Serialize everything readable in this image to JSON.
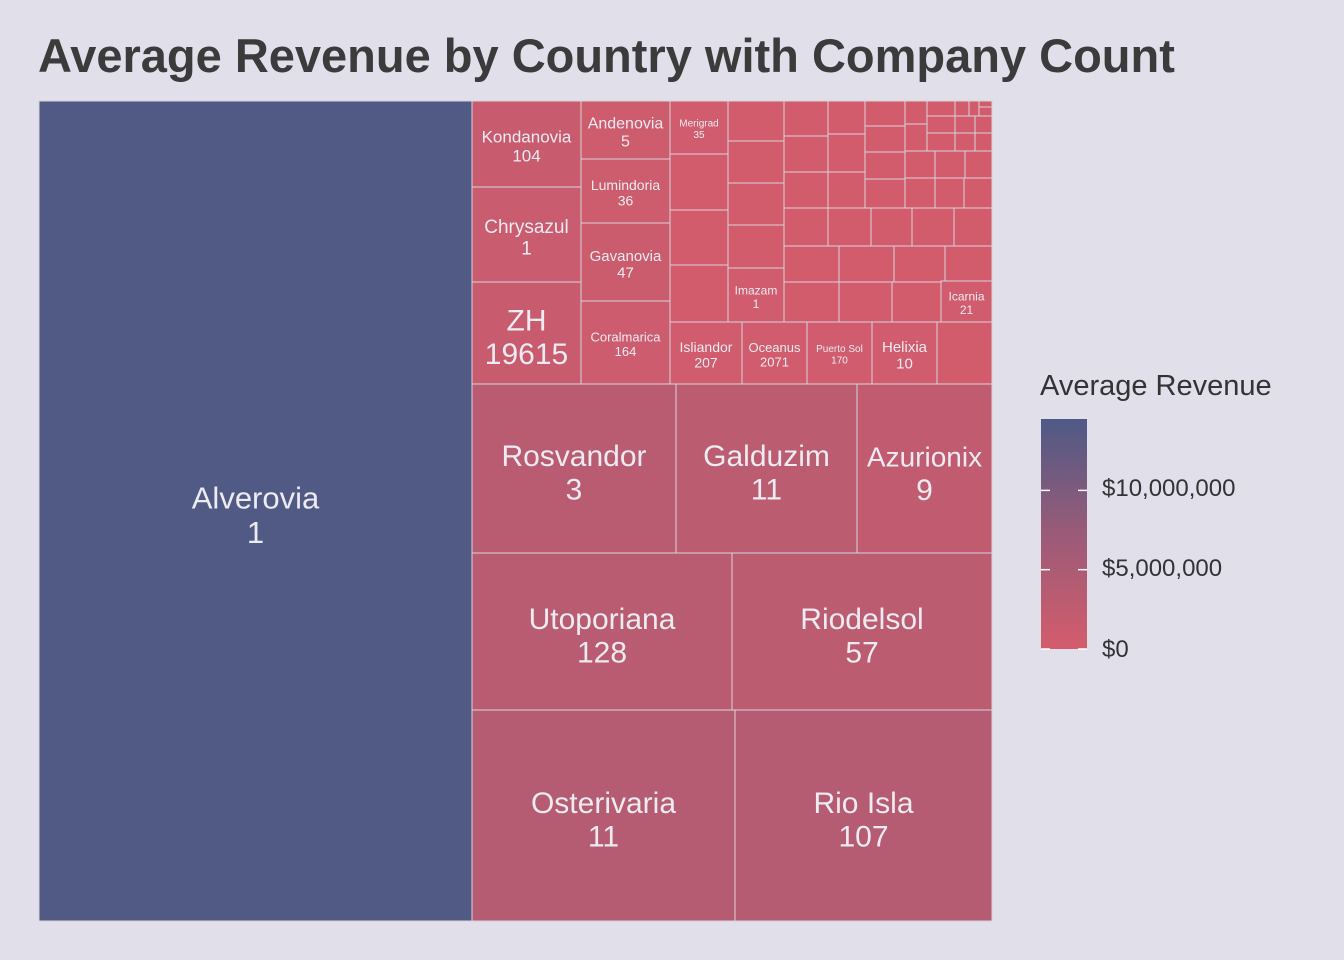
{
  "chart_data": {
    "type": "treemap",
    "title": "Average Revenue by Country with Company Count",
    "color_legend": {
      "title": "Average Revenue",
      "ticks": [
        {
          "value": 10000000,
          "label": "$10,000,000"
        },
        {
          "value": 5000000,
          "label": "$5,000,000"
        },
        {
          "value": 0,
          "label": "$0"
        }
      ],
      "range": [
        0,
        14500000
      ],
      "low_color": "#d45c6c",
      "high_color": "#4e5a86",
      "placement": "right"
    },
    "labeled_tiles": [
      {
        "name": "Alverovia",
        "count": "1",
        "avg_revenue": 14200000
      },
      {
        "name": "Kondanovia",
        "count": "104",
        "avg_revenue": 1300000
      },
      {
        "name": "Chrysazul",
        "count": "1",
        "avg_revenue": 1150000
      },
      {
        "name": "ZH",
        "count": "19615",
        "avg_revenue": 1250000
      },
      {
        "name": "Andenovia",
        "count": "5",
        "avg_revenue": 800000
      },
      {
        "name": "Lumindoria",
        "count": "36",
        "avg_revenue": 750000
      },
      {
        "name": "Gavanovia",
        "count": "47",
        "avg_revenue": 1000000
      },
      {
        "name": "Coralmarica",
        "count": "164",
        "avg_revenue": 900000
      },
      {
        "name": "Merigrad",
        "count": "35",
        "avg_revenue": 400000
      },
      {
        "name": "Imazam",
        "count": "1",
        "avg_revenue": 300000
      },
      {
        "name": "Icarnia",
        "count": "21",
        "avg_revenue": 280000
      },
      {
        "name": "Isliandor",
        "count": "207",
        "avg_revenue": 450000
      },
      {
        "name": "Oceanus",
        "count": "2071",
        "avg_revenue": 420000
      },
      {
        "name": "Puerto Sol",
        "count": "170",
        "avg_revenue": 380000
      },
      {
        "name": "Helixia",
        "count": "10",
        "avg_revenue": 420000
      },
      {
        "name": "Rosvandor",
        "count": "3",
        "avg_revenue": 2800000
      },
      {
        "name": "Galduzim",
        "count": "11",
        "avg_revenue": 2700000
      },
      {
        "name": "Azurionix",
        "count": "9",
        "avg_revenue": 2100000
      },
      {
        "name": "Utoporiana",
        "count": "128",
        "avg_revenue": 2900000
      },
      {
        "name": "Riodelsol",
        "count": "57",
        "avg_revenue": 2700000
      },
      {
        "name": "Osterivaria",
        "count": "11",
        "avg_revenue": 3200000
      },
      {
        "name": "Rio Isla",
        "count": "107",
        "avg_revenue": 3300000
      }
    ]
  }
}
